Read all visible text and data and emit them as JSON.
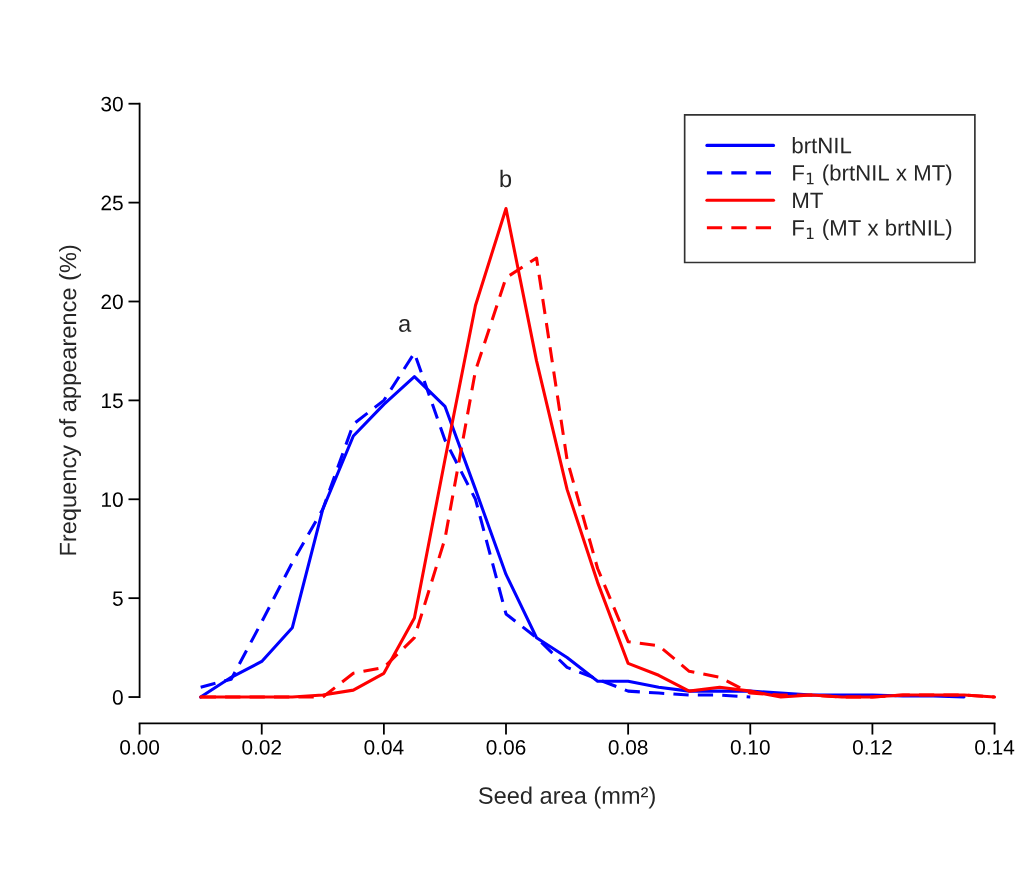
{
  "chart_data": {
    "type": "line",
    "xlabel": "Seed area (mm²)",
    "ylabel": "Frequency of appearence (%)",
    "xlim": [
      0,
      0.14
    ],
    "ylim": [
      0,
      30
    ],
    "xticks": [
      {
        "value": 0,
        "label": "0.00"
      },
      {
        "value": 0.02,
        "label": "0.02"
      },
      {
        "value": 0.04,
        "label": "0.04"
      },
      {
        "value": 0.06,
        "label": "0.06"
      },
      {
        "value": 0.08,
        "label": "0.08"
      },
      {
        "value": 0.1,
        "label": "0.10"
      },
      {
        "value": 0.12,
        "label": "0.12"
      },
      {
        "value": 0.14,
        "label": "0.14"
      }
    ],
    "yticks": [
      0,
      5,
      10,
      15,
      20,
      25,
      30
    ],
    "legend": "top right",
    "grid": false,
    "marker": "none",
    "annotations": [
      "a",
      "b"
    ],
    "series": [
      {
        "name": "brtNIL",
        "color": "#0000ff",
        "line_style": "solid",
        "x": [
          0.01,
          0.015,
          0.02,
          0.025,
          0.03,
          0.035,
          0.04,
          0.045,
          0.05,
          0.055,
          0.06,
          0.065,
          0.07,
          0.075,
          0.08,
          0.085,
          0.09,
          0.095,
          0.1,
          0.105,
          0.11,
          0.115,
          0.12,
          0.125,
          0.13,
          0.135
        ],
        "values": [
          0,
          1.0,
          1.8,
          3.5,
          9.5,
          13.2,
          14.8,
          16.2,
          14.7,
          10.5,
          6.2,
          3.0,
          2.0,
          0.8,
          0.8,
          0.5,
          0.3,
          0.3,
          0.3,
          0.2,
          0.1,
          0.1,
          0.1,
          0.05,
          0.05,
          0
        ]
      },
      {
        "name": "F$_{1}$ (brtNIL x MT)",
        "color": "#0000ff",
        "line_style": "dashed",
        "x": [
          0.01,
          0.015,
          0.02,
          0.025,
          0.03,
          0.035,
          0.04,
          0.045,
          0.05,
          0.055,
          0.06,
          0.065,
          0.07,
          0.075,
          0.08,
          0.085,
          0.09,
          0.095,
          0.1
        ],
        "values": [
          0.5,
          0.9,
          3.8,
          6.8,
          9.5,
          13.8,
          15.0,
          17.4,
          13.0,
          10.0,
          4.2,
          3.0,
          1.5,
          0.9,
          0.3,
          0.2,
          0.1,
          0.1,
          0
        ]
      },
      {
        "name": "MT",
        "color": "#ff0000",
        "line_style": "solid",
        "x": [
          0.01,
          0.015,
          0.02,
          0.025,
          0.03,
          0.035,
          0.04,
          0.045,
          0.05,
          0.055,
          0.06,
          0.065,
          0.07,
          0.075,
          0.08,
          0.085,
          0.09,
          0.095,
          0.1,
          0.105,
          0.11,
          0.115,
          0.12,
          0.125,
          0.13,
          0.135,
          0.14
        ],
        "values": [
          0,
          0,
          0,
          0,
          0.1,
          0.35,
          1.2,
          4.0,
          12.0,
          19.8,
          24.7,
          17.0,
          10.5,
          5.8,
          1.7,
          1.1,
          0.3,
          0.5,
          0.3,
          0,
          0.1,
          0,
          0,
          0.1,
          0.1,
          0.1,
          0
        ]
      },
      {
        "name": "F$_{1}$ (MT x brtNIL)",
        "color": "#ff0000",
        "line_style": "dashed",
        "x": [
          0.01,
          0.015,
          0.02,
          0.025,
          0.03,
          0.035,
          0.04,
          0.045,
          0.05,
          0.055,
          0.06,
          0.065,
          0.07,
          0.075,
          0.08,
          0.085,
          0.09,
          0.095,
          0.1,
          0.105,
          0.11,
          0.115,
          0.12,
          0.125,
          0.13,
          0.135,
          0.14
        ],
        "values": [
          0,
          0,
          0,
          0,
          0,
          1.2,
          1.5,
          3.0,
          8.0,
          16.5,
          21.2,
          22.2,
          12.0,
          6.5,
          2.8,
          2.6,
          1.3,
          1.0,
          0.2,
          0.1,
          0.1,
          0,
          0,
          0.1,
          0.1,
          0.1,
          0
        ]
      }
    ]
  }
}
